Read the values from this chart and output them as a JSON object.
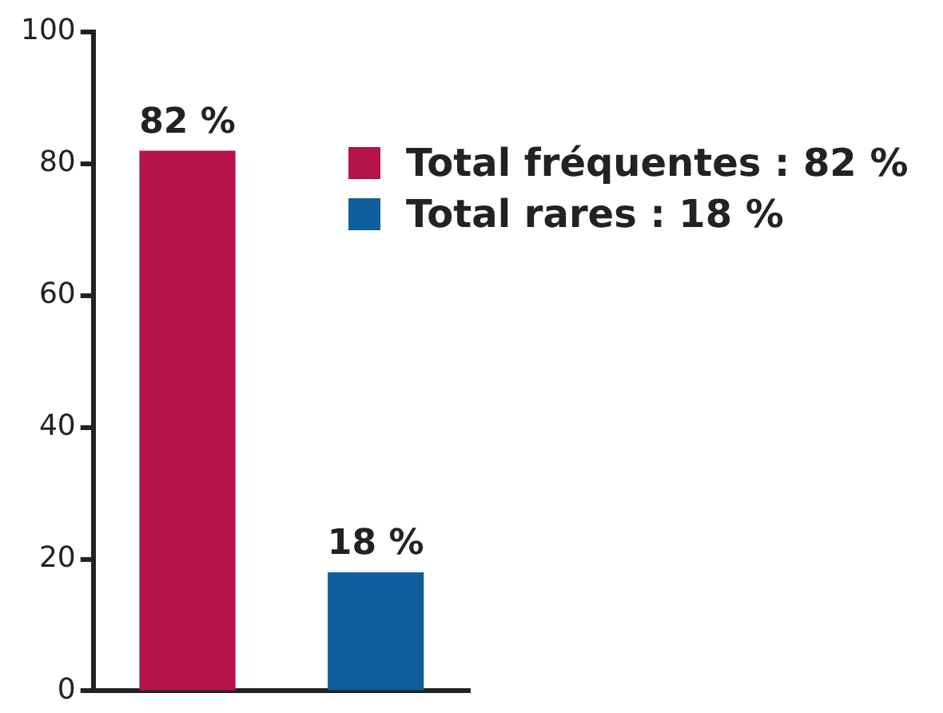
{
  "chart_data": {
    "type": "bar",
    "categories": [
      null,
      null
    ],
    "series": [
      {
        "name": "Total fréquentes : 82 %",
        "color": "#b5134a",
        "values": [
          82,
          null
        ],
        "value_labels": [
          "82 %",
          null
        ]
      },
      {
        "name": "Total rares : 18 %",
        "color": "#0e5f9c",
        "values": [
          null,
          18
        ],
        "value_labels": [
          null,
          "18 %"
        ]
      }
    ],
    "ylim": [
      0,
      100
    ],
    "yticks": [
      0,
      20,
      40,
      60,
      80,
      100
    ],
    "grid": false,
    "legend": "top right",
    "tick_labels": "y"
  }
}
